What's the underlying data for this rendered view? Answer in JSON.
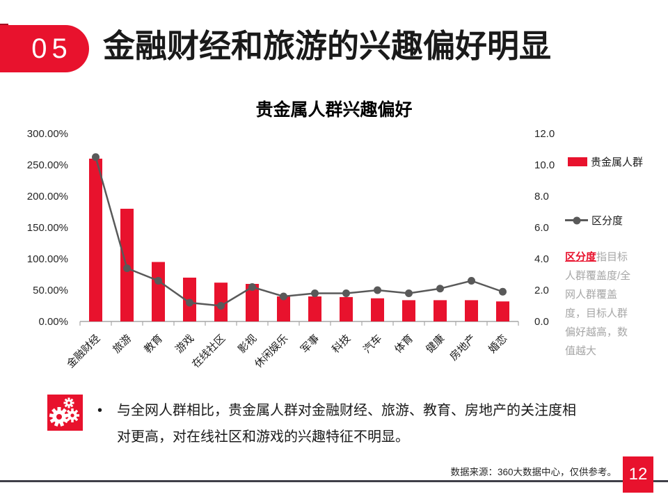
{
  "slide": {
    "badge_number": "05",
    "title": "金融财经和旅游的兴趣偏好明显",
    "bullet_marker": "•",
    "bullet_text": "与全网人群相比，贵金属人群对金融财经、旅游、教育、房地产的关注度相对更高，对在线社区和游戏的兴趣特征不明显。",
    "source": "数据来源：360大数据中心，仅供参考。",
    "page_number": "12"
  },
  "note": {
    "term": "区分度",
    "text": "指目标人群覆盖度/全网人群覆盖度，目标人群偏好越高，数值越大"
  },
  "icons": {
    "callout": "gears-icon",
    "legend_bar": "red-square-swatch",
    "legend_line": "gray-line-dot-swatch"
  },
  "colors": {
    "accent_red": "#e8122d",
    "accent_red_dark": "#a30d22",
    "line_gray": "#595959",
    "note_gray": "#a6a6a6",
    "axis_gray": "#a6a6a6",
    "axis_text": "#262626",
    "footer_line": "#3f3f48"
  },
  "chart_data": {
    "type": "bar",
    "subtype": "combo-bar-line",
    "title": "贵金属人群兴趣偏好",
    "grid": false,
    "legend_position": "right",
    "categories": [
      "金融财经",
      "旅游",
      "教育",
      "游戏",
      "在线社区",
      "影视",
      "休闲娱乐",
      "军事",
      "科技",
      "汽车",
      "体育",
      "健康",
      "房地产",
      "婚恋"
    ],
    "series": [
      {
        "name": "贵金属人群",
        "type": "bar",
        "axis": "left",
        "unit": "%",
        "values": [
          260,
          180,
          95,
          70,
          62,
          60,
          40,
          40,
          39,
          37,
          34,
          34,
          34,
          32
        ]
      },
      {
        "name": "区分度",
        "type": "line",
        "axis": "right",
        "values": [
          10.5,
          3.4,
          2.6,
          1.2,
          1.0,
          2.2,
          1.6,
          1.8,
          1.8,
          2.0,
          1.8,
          2.1,
          2.6,
          1.9
        ]
      }
    ],
    "left_axis": {
      "min": 0,
      "max": 300,
      "unit": "%",
      "labels": [
        "300.00%",
        "250.00%",
        "200.00%",
        "150.00%",
        "100.00%",
        "50.00%",
        "0.00%"
      ]
    },
    "right_axis": {
      "min": 0,
      "max": 12,
      "labels": [
        "12.0",
        "10.0",
        "8.0",
        "6.0",
        "4.0",
        "2.0",
        "0.0"
      ]
    }
  }
}
